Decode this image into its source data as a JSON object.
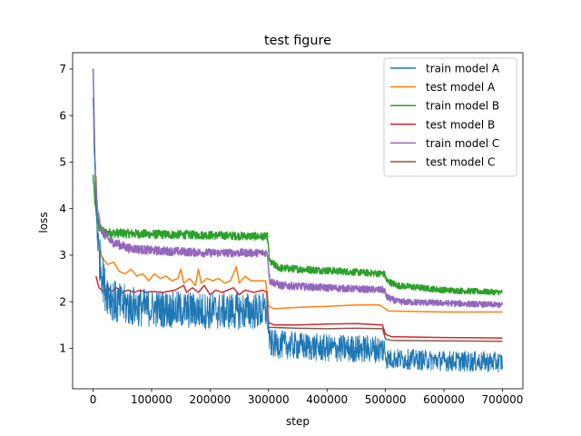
{
  "chart_data": {
    "type": "line",
    "title": "test figure",
    "xlabel": "step",
    "ylabel": "loss",
    "xlim": [
      -35000,
      735000
    ],
    "ylim": [
      0.13,
      7.35
    ],
    "xticks": [
      0,
      100000,
      200000,
      300000,
      400000,
      500000,
      600000,
      700000
    ],
    "xtick_labels": [
      "0",
      "100000",
      "200000",
      "300000",
      "400000",
      "500000",
      "600000",
      "700000"
    ],
    "yticks": [
      1,
      2,
      3,
      4,
      5,
      6,
      7
    ],
    "ytick_labels": [
      "1",
      "2",
      "3",
      "4",
      "5",
      "6",
      "7"
    ],
    "grid": false,
    "legend_position": "upper right",
    "series": [
      {
        "name": "train model A",
        "color": "#1f77b4",
        "style": "noisy",
        "points": [
          [
            0,
            6.3
          ],
          [
            2000,
            5.4
          ],
          [
            5000,
            4.0
          ],
          [
            10000,
            3.0
          ],
          [
            20000,
            2.3
          ],
          [
            40000,
            1.95
          ],
          [
            100000,
            1.85
          ],
          [
            200000,
            1.8
          ],
          [
            298000,
            1.8
          ],
          [
            302000,
            1.1
          ],
          [
            350000,
            1.05
          ],
          [
            400000,
            1.0
          ],
          [
            498000,
            0.98
          ],
          [
            502000,
            0.78
          ],
          [
            600000,
            0.73
          ],
          [
            700000,
            0.7
          ]
        ],
        "noise": [
          [
            0,
            0.3
          ],
          [
            10000,
            0.5
          ],
          [
            100000,
            0.4
          ],
          [
            298000,
            0.4
          ],
          [
            302000,
            0.3
          ],
          [
            498000,
            0.3
          ],
          [
            502000,
            0.22
          ],
          [
            700000,
            0.22
          ]
        ]
      },
      {
        "name": "test model A",
        "color": "#ff7f0e",
        "style": "line",
        "points": [
          [
            5000,
            4.7
          ],
          [
            8000,
            3.4
          ],
          [
            15000,
            2.95
          ],
          [
            25000,
            2.8
          ],
          [
            35000,
            2.85
          ],
          [
            45000,
            2.65
          ],
          [
            55000,
            2.6
          ],
          [
            65000,
            2.7
          ],
          [
            75000,
            2.55
          ],
          [
            85000,
            2.6
          ],
          [
            95000,
            2.45
          ],
          [
            105000,
            2.6
          ],
          [
            115000,
            2.5
          ],
          [
            125000,
            2.55
          ],
          [
            135000,
            2.45
          ],
          [
            145000,
            2.5
          ],
          [
            150000,
            2.7
          ],
          [
            155000,
            2.4
          ],
          [
            165000,
            2.5
          ],
          [
            175000,
            2.35
          ],
          [
            180000,
            2.7
          ],
          [
            185000,
            2.4
          ],
          [
            195000,
            2.5
          ],
          [
            205000,
            2.45
          ],
          [
            215000,
            2.5
          ],
          [
            225000,
            2.4
          ],
          [
            235000,
            2.45
          ],
          [
            245000,
            2.75
          ],
          [
            250000,
            2.4
          ],
          [
            260000,
            2.55
          ],
          [
            270000,
            2.45
          ],
          [
            280000,
            2.45
          ],
          [
            295000,
            2.45
          ],
          [
            300000,
            1.9
          ],
          [
            310000,
            1.85
          ],
          [
            350000,
            1.88
          ],
          [
            400000,
            1.9
          ],
          [
            450000,
            1.93
          ],
          [
            490000,
            1.93
          ],
          [
            500000,
            1.85
          ],
          [
            505000,
            1.8
          ],
          [
            600000,
            1.78
          ],
          [
            700000,
            1.78
          ]
        ]
      },
      {
        "name": "train model B",
        "color": "#2ca02c",
        "style": "noisy",
        "points": [
          [
            0,
            4.7
          ],
          [
            4000,
            4.0
          ],
          [
            10000,
            3.6
          ],
          [
            20000,
            3.48
          ],
          [
            100000,
            3.45
          ],
          [
            200000,
            3.43
          ],
          [
            298000,
            3.4
          ],
          [
            302000,
            2.85
          ],
          [
            320000,
            2.72
          ],
          [
            400000,
            2.67
          ],
          [
            498000,
            2.6
          ],
          [
            502000,
            2.45
          ],
          [
            520000,
            2.35
          ],
          [
            600000,
            2.25
          ],
          [
            700000,
            2.2
          ]
        ],
        "noise": [
          [
            0,
            0.1
          ],
          [
            700000,
            0.06
          ]
        ]
      },
      {
        "name": "test model B",
        "color": "#d62728",
        "style": "line",
        "points": [
          [
            5000,
            2.55
          ],
          [
            10000,
            2.3
          ],
          [
            20000,
            2.2
          ],
          [
            25000,
            2.35
          ],
          [
            30000,
            2.2
          ],
          [
            40000,
            2.3
          ],
          [
            50000,
            2.2
          ],
          [
            60000,
            2.25
          ],
          [
            70000,
            2.2
          ],
          [
            80000,
            2.25
          ],
          [
            90000,
            2.2
          ],
          [
            100000,
            2.22
          ],
          [
            120000,
            2.2
          ],
          [
            140000,
            2.25
          ],
          [
            155000,
            2.35
          ],
          [
            160000,
            2.2
          ],
          [
            170000,
            2.3
          ],
          [
            180000,
            2.2
          ],
          [
            190000,
            2.35
          ],
          [
            200000,
            2.15
          ],
          [
            210000,
            2.25
          ],
          [
            220000,
            2.2
          ],
          [
            240000,
            2.3
          ],
          [
            250000,
            2.15
          ],
          [
            260000,
            2.25
          ],
          [
            275000,
            2.2
          ],
          [
            290000,
            2.25
          ],
          [
            297000,
            2.2
          ],
          [
            300000,
            1.55
          ],
          [
            310000,
            1.5
          ],
          [
            350000,
            1.5
          ],
          [
            400000,
            1.52
          ],
          [
            450000,
            1.53
          ],
          [
            495000,
            1.5
          ],
          [
            500000,
            1.3
          ],
          [
            510000,
            1.25
          ],
          [
            600000,
            1.23
          ],
          [
            700000,
            1.22
          ]
        ]
      },
      {
        "name": "train model C",
        "color": "#9467bd",
        "style": "noisy",
        "points": [
          [
            0,
            7.05
          ],
          [
            1500,
            6.0
          ],
          [
            4000,
            4.6
          ],
          [
            8000,
            3.9
          ],
          [
            15000,
            3.5
          ],
          [
            30000,
            3.3
          ],
          [
            60000,
            3.15
          ],
          [
            100000,
            3.1
          ],
          [
            200000,
            3.05
          ],
          [
            298000,
            3.05
          ],
          [
            302000,
            2.45
          ],
          [
            320000,
            2.35
          ],
          [
            400000,
            2.3
          ],
          [
            498000,
            2.25
          ],
          [
            502000,
            2.1
          ],
          [
            520000,
            2.0
          ],
          [
            600000,
            1.97
          ],
          [
            700000,
            1.93
          ]
        ],
        "noise": [
          [
            0,
            0.1
          ],
          [
            700000,
            0.06
          ]
        ]
      },
      {
        "name": "test model C",
        "color": "#8c564b",
        "style": "line",
        "points": [
          [
            300000,
            1.45
          ],
          [
            350000,
            1.43
          ],
          [
            400000,
            1.42
          ],
          [
            450000,
            1.43
          ],
          [
            495000,
            1.42
          ],
          [
            500000,
            1.2
          ],
          [
            510000,
            1.17
          ],
          [
            600000,
            1.16
          ],
          [
            700000,
            1.15
          ]
        ]
      }
    ]
  }
}
